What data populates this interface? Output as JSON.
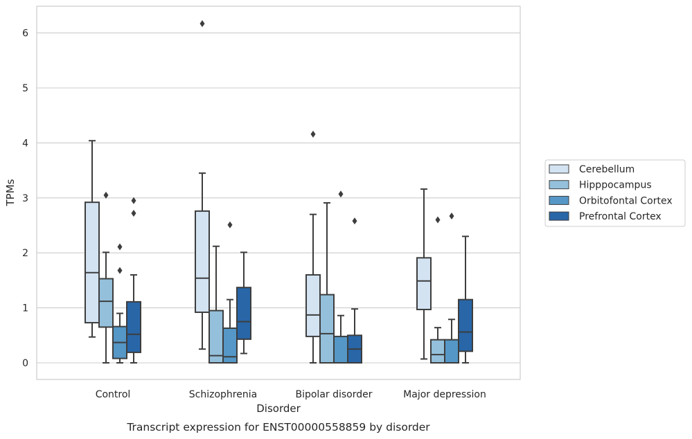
{
  "chart_data": {
    "type": "boxplot",
    "caption": "Transcript expression for ENST00000558859 by disorder",
    "xlabel": "Disorder",
    "ylabel": "TPMs",
    "ylim": [
      -0.3,
      6.5
    ],
    "yticks": [
      0,
      1,
      2,
      3,
      4,
      5,
      6
    ],
    "grid": "horizontal",
    "legend_position": "right",
    "categories": [
      "Control",
      "Schizophrenia",
      "Bipolar disorder",
      "Major depression"
    ],
    "series": [
      {
        "name": "Cerebellum",
        "color": "#d3e3f2",
        "boxes": [
          {
            "whislo": 0.47,
            "q1": 0.73,
            "med": 1.64,
            "q3": 2.92,
            "whishi": 4.04,
            "fliers": []
          },
          {
            "whislo": 0.25,
            "q1": 0.92,
            "med": 1.54,
            "q3": 2.76,
            "whishi": 3.45,
            "fliers": [
              6.17
            ]
          },
          {
            "whislo": 0.0,
            "q1": 0.48,
            "med": 0.87,
            "q3": 1.6,
            "whishi": 2.7,
            "fliers": [
              4.16
            ]
          },
          {
            "whislo": 0.07,
            "q1": 0.97,
            "med": 1.49,
            "q3": 1.91,
            "whishi": 3.16,
            "fliers": []
          }
        ]
      },
      {
        "name": "Hipppocampus",
        "color": "#94c0db",
        "boxes": [
          {
            "whislo": 0.0,
            "q1": 0.65,
            "med": 1.12,
            "q3": 1.53,
            "whishi": 2.01,
            "fliers": [
              3.05
            ]
          },
          {
            "whislo": 0.0,
            "q1": 0.0,
            "med": 0.13,
            "q3": 0.95,
            "whishi": 2.12,
            "fliers": []
          },
          {
            "whislo": 0.0,
            "q1": 0.0,
            "med": 0.53,
            "q3": 1.24,
            "whishi": 2.91,
            "fliers": []
          },
          {
            "whislo": 0.0,
            "q1": 0.0,
            "med": 0.15,
            "q3": 0.42,
            "whishi": 0.64,
            "fliers": [
              2.6
            ]
          }
        ]
      },
      {
        "name": "Orbitofontal Cortex",
        "color": "#5597c6",
        "boxes": [
          {
            "whislo": 0.0,
            "q1": 0.08,
            "med": 0.37,
            "q3": 0.66,
            "whishi": 0.9,
            "fliers": [
              2.11,
              1.68
            ]
          },
          {
            "whislo": 0.0,
            "q1": 0.0,
            "med": 0.11,
            "q3": 0.63,
            "whishi": 1.15,
            "fliers": [
              2.51
            ]
          },
          {
            "whislo": 0.0,
            "q1": 0.0,
            "med": 0.0,
            "q3": 0.48,
            "whishi": 0.86,
            "fliers": [
              3.07
            ]
          },
          {
            "whislo": 0.0,
            "q1": 0.0,
            "med": 0.0,
            "q3": 0.42,
            "whishi": 0.79,
            "fliers": [
              2.67
            ]
          }
        ]
      },
      {
        "name": "Prefrontal Cortex",
        "color": "#2866a8",
        "boxes": [
          {
            "whislo": 0.0,
            "q1": 0.19,
            "med": 0.52,
            "q3": 1.11,
            "whishi": 1.6,
            "fliers": [
              2.95,
              2.72
            ]
          },
          {
            "whislo": 0.17,
            "q1": 0.43,
            "med": 0.75,
            "q3": 1.37,
            "whishi": 2.01,
            "fliers": []
          },
          {
            "whislo": 0.0,
            "q1": 0.0,
            "med": 0.25,
            "q3": 0.5,
            "whishi": 0.98,
            "fliers": [
              2.58
            ]
          },
          {
            "whislo": 0.0,
            "q1": 0.21,
            "med": 0.56,
            "q3": 1.15,
            "whishi": 2.3,
            "fliers": []
          }
        ]
      }
    ]
  }
}
